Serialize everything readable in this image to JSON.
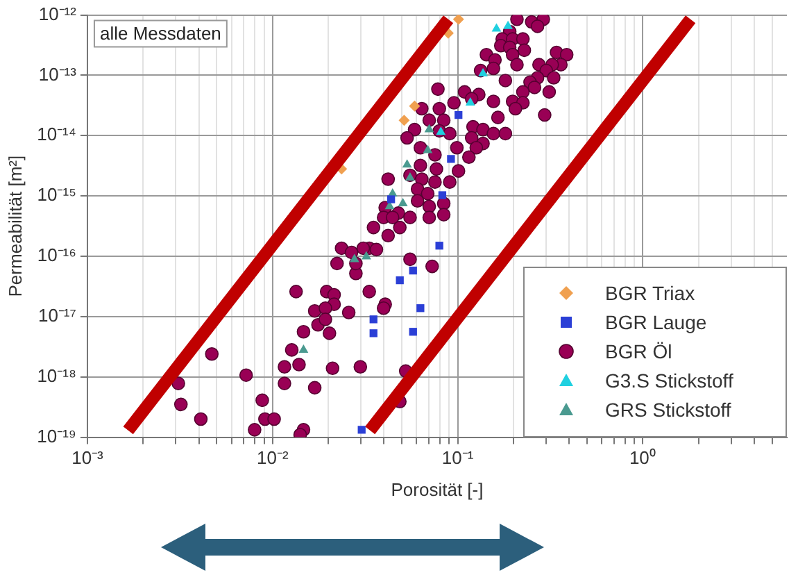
{
  "chart_data": {
    "type": "scatter",
    "xlabel": "Porosität [-]",
    "ylabel": "Permeabilität [m²]",
    "log": "xy",
    "grid": true,
    "legend": "bottom right",
    "annotations": [
      "alle Messdaten"
    ],
    "xlim": [
      0.001,
      6
    ],
    "ylim": [
      1e-19,
      1e-12
    ],
    "xticks": [
      {
        "value": 0.001,
        "label": "10⁻³"
      },
      {
        "value": 0.002,
        "label": null
      },
      {
        "value": 0.003,
        "label": null
      },
      {
        "value": 0.004,
        "label": null
      },
      {
        "value": 0.005,
        "label": null
      },
      {
        "value": 0.006,
        "label": null
      },
      {
        "value": 0.007,
        "label": null
      },
      {
        "value": 0.008,
        "label": null
      },
      {
        "value": 0.009,
        "label": null
      },
      {
        "value": 0.01,
        "label": "10⁻²"
      },
      {
        "value": 0.02,
        "label": null
      },
      {
        "value": 0.03,
        "label": null
      },
      {
        "value": 0.04,
        "label": null
      },
      {
        "value": 0.05,
        "label": null
      },
      {
        "value": 0.06,
        "label": null
      },
      {
        "value": 0.07,
        "label": null
      },
      {
        "value": 0.08,
        "label": null
      },
      {
        "value": 0.09,
        "label": null
      },
      {
        "value": 0.1,
        "label": "10⁻¹"
      },
      {
        "value": 0.2,
        "label": null
      },
      {
        "value": 0.3,
        "label": null
      },
      {
        "value": 0.4,
        "label": null
      },
      {
        "value": 0.5,
        "label": null
      },
      {
        "value": 0.6,
        "label": null
      },
      {
        "value": 0.7,
        "label": null
      },
      {
        "value": 0.8,
        "label": null
      },
      {
        "value": 0.9,
        "label": null
      },
      {
        "value": 1,
        "label": "10⁰"
      },
      {
        "value": 2,
        "label": null
      },
      {
        "value": 3,
        "label": null
      },
      {
        "value": 4,
        "label": null
      },
      {
        "value": 5,
        "label": null
      }
    ],
    "yticks": [
      {
        "value": 1e-19,
        "label": "10⁻¹⁹"
      },
      {
        "value": 1e-18,
        "label": "10⁻¹⁸"
      },
      {
        "value": 1e-17,
        "label": "10⁻¹⁷"
      },
      {
        "value": 1e-16,
        "label": "10⁻¹⁶"
      },
      {
        "value": 1e-15,
        "label": "10⁻¹⁵"
      },
      {
        "value": 1e-14,
        "label": "10⁻¹⁴"
      },
      {
        "value": 1e-13,
        "label": "10⁻¹³"
      },
      {
        "value": 1e-12,
        "label": "10⁻¹²"
      }
    ],
    "series": [
      {
        "name": "BGR Triax",
        "color": "#f0a050",
        "marker": "diamond",
        "x": [
          0.101,
          0.0889,
          0.0585,
          0.0514,
          0.0236
        ],
        "values": [
          8.5e-13,
          5e-13,
          3.1e-14,
          1.8e-14,
          2.8e-15
        ]
      },
      {
        "name": "BGR Lauge",
        "color": "#2b3fd6",
        "marker": "square",
        "x": [
          0.0351,
          0.0351,
          0.0303,
          0.0487,
          0.0574,
          0.0629,
          0.0574,
          0.101,
          0.092,
          0.0826,
          0.0437,
          0.0796
        ],
        "values": [
          9e-18,
          5.3e-18,
          1.33e-19,
          4e-17,
          5.8e-17,
          1.38e-17,
          5.6e-18,
          2.2e-14,
          4.1e-15,
          1.03e-15,
          8.8e-16,
          1.5e-16
        ]
      },
      {
        "name": "BGR Öl",
        "color": "#990055",
        "marker": "circle",
        "x": [
          0.209,
          0.251,
          0.29,
          0.27,
          0.191,
          0.174,
          0.198,
          0.225,
          0.171,
          0.191,
          0.229,
          0.143,
          0.159,
          0.198,
          0.209,
          0.156,
          0.133,
          0.181,
          0.342,
          0.388,
          0.361,
          0.324,
          0.275,
          0.301,
          0.27,
          0.246,
          0.33,
          0.312,
          0.26,
          0.225,
          0.198,
          0.225,
          0.205,
          0.295,
          0.165,
          0.156,
          0.13,
          0.109,
          0.119,
          0.0955,
          0.0782,
          0.064,
          0.0796,
          0.0702,
          0.0841,
          0.0585,
          0.0796,
          0.0906,
          0.121,
          0.137,
          0.156,
          0.181,
          0.119,
          0.137,
          0.126,
          0.099,
          0.0533,
          0.0629,
          0.0754,
          0.115,
          0.101,
          0.0768,
          0.0629,
          0.0553,
          0.064,
          0.0754,
          0.0906,
          0.0421,
          0.0607,
          0.0689,
          0.0841,
          0.0607,
          0.0702,
          0.0406,
          0.0478,
          0.0553,
          0.0398,
          0.0702,
          0.0841,
          0.0421,
          0.0351,
          0.0333,
          0.0364,
          0.0553,
          0.0728,
          0.0487,
          0.0445,
          0.0236,
          0.0267,
          0.0309,
          0.0282,
          0.0223,
          0.0134,
          0.0196,
          0.0215,
          0.0333,
          0.0215,
          0.0169,
          0.0193,
          0.0176,
          0.0193,
          0.0203,
          0.0147,
          0.0258,
          0.0406,
          0.0398,
          0.0127,
          0.0116,
          0.0139,
          0.0211,
          0.0298,
          0.0116,
          0.0169,
          0.0072,
          0.0047,
          0.0031,
          0.0032,
          0.0041,
          0.0088,
          0.0091,
          0.0102,
          0.008,
          0.0147,
          0.0141,
          0.0282,
          0.0524,
          0.0487
        ],
        "values": [
          8.5e-13,
          7.7e-13,
          8.5e-13,
          6.5e-13,
          5.3e-13,
          4e-13,
          4e-13,
          4e-13,
          3.1e-13,
          2.9e-13,
          2.6e-13,
          2.2e-13,
          1.8e-13,
          2.2e-13,
          1.5e-13,
          1.3e-13,
          1.2e-13,
          8.2e-14,
          2.4e-13,
          2.2e-13,
          1.5e-13,
          1.5e-13,
          1.5e-13,
          1.2e-13,
          9.1e-14,
          7.7e-14,
          9.1e-14,
          5.3e-14,
          6.3e-14,
          5.3e-14,
          3.7e-14,
          3.5e-14,
          2.8e-14,
          2.2e-14,
          2e-14,
          3.7e-14,
          4.8e-14,
          5.3e-14,
          4.1e-14,
          3.5e-14,
          5.9e-14,
          2.8e-14,
          2.8e-14,
          1.8e-14,
          1.8e-14,
          1.26e-14,
          1.2e-14,
          1.08e-14,
          1.4e-14,
          1.26e-14,
          1.08e-14,
          1.08e-14,
          9.2e-15,
          7.4e-15,
          6.3e-15,
          6.3e-15,
          9.2e-15,
          6.3e-15,
          4.8e-15,
          4.4e-15,
          2.6e-15,
          2.8e-15,
          3.2e-15,
          2.2e-15,
          1.9e-15,
          1.7e-15,
          1.7e-15,
          1.9e-15,
          1.3e-15,
          1.09e-15,
          7.5e-16,
          8.3e-16,
          6.7e-16,
          6.4e-16,
          5.2e-16,
          4.4e-16,
          4.4e-16,
          4.4e-16,
          4.9e-16,
          2.2e-16,
          3e-16,
          1.36e-16,
          1.29e-16,
          8.9e-17,
          6.8e-17,
          3e-16,
          4.4e-16,
          1.36e-16,
          1.16e-16,
          1.36e-16,
          5.2e-17,
          7.6e-17,
          2.6e-17,
          2.6e-17,
          2.3e-17,
          2.6e-17,
          1.6e-17,
          1.24e-17,
          1.38e-17,
          7.3e-18,
          9e-18,
          5.3e-18,
          5.6e-18,
          1.17e-17,
          1.6e-17,
          1.38e-17,
          2.8e-18,
          1.47e-18,
          1.6e-18,
          1.39e-18,
          1.47e-18,
          7.8e-19,
          6.6e-19,
          1.07e-18,
          2.4e-18,
          7.8e-19,
          3.5e-19,
          2e-19,
          4.1e-19,
          2e-19,
          2e-19,
          1.33e-19,
          1.33e-19,
          1.1e-19,
          7.6e-17,
          1.25e-18,
          3.9e-19
        ]
      },
      {
        "name": "G3.S Stickstoff",
        "color": "#20d0e0",
        "marker": "triangle",
        "x": [
          0.162,
          0.187,
          0.137,
          0.117,
          0.0811
        ],
        "values": [
          5.9e-13,
          6.5e-13,
          1.07e-13,
          3.5e-14,
          1.14e-14
        ]
      },
      {
        "name": "GRS Stickstoff",
        "color": "#4a9a90",
        "marker": "triangle",
        "x": [
          0.0702,
          0.0689,
          0.0533,
          0.0553,
          0.0445,
          0.0506,
          0.0429,
          0.0321,
          0.0277,
          0.0147
        ],
        "values": [
          1.26e-14,
          5.7e-15,
          3.3e-15,
          2e-15,
          1.09e-15,
          7.5e-16,
          6.7e-16,
          9.9e-17,
          8.9e-17,
          2.8e-18
        ]
      },
      {
        "type": "line",
        "color": "#c00000",
        "x": [
          0.00166,
          0.089
        ],
        "values": [
          1.3e-19,
          8.5e-13
        ]
      },
      {
        "type": "line",
        "color": "#c00000",
        "x": [
          0.0336,
          1.81
        ],
        "values": [
          1.3e-19,
          8.5e-13
        ]
      }
    ]
  }
}
